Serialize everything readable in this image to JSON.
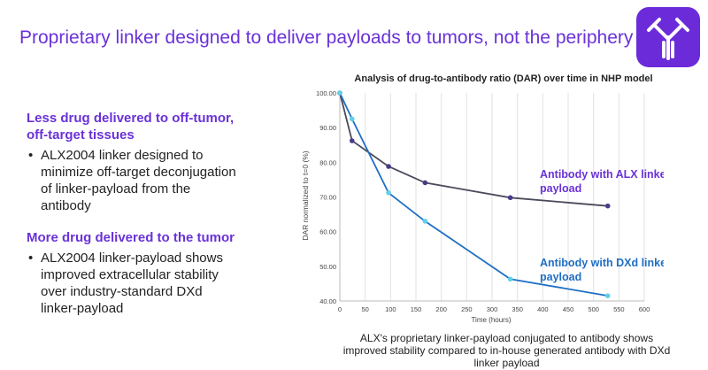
{
  "slide": {
    "title": "Proprietary linker designed to deliver payloads to tumors, not the periphery",
    "logo_icon": "antibody-icon",
    "accent_color": "#6c2bd9"
  },
  "points": [
    {
      "heading_line1": "Less drug delivered to off-tumor,",
      "heading_line2": "off-target tissues",
      "bullet_lines": [
        "ALX2004 linker designed to",
        "minimize off-target deconjugation",
        "of linker-payload from the",
        "antibody"
      ]
    },
    {
      "heading_line1": "More drug delivered to the tumor",
      "bullet_lines": [
        "ALX2004 linker-payload shows",
        "improved extracellular stability",
        "over industry-standard DXd",
        "linker-payload"
      ]
    }
  ],
  "caption_lines": [
    "ALX's proprietary linker-payload conjugated to antibody shows",
    "improved stability compared to in-house generated antibody with DXd",
    "linker payload"
  ],
  "chart_data": {
    "type": "line",
    "title": "Analysis of drug-to-antibody ratio (DAR) over time in NHP model",
    "xlabel": "Time (hours)",
    "ylabel": "DAR normalized to t=0 (%)",
    "xlim": [
      0,
      600
    ],
    "ylim": [
      40,
      100
    ],
    "x_ticks": [
      0,
      50,
      100,
      150,
      200,
      250,
      300,
      350,
      400,
      450,
      500,
      550,
      600
    ],
    "y_ticks": [
      40,
      50,
      60,
      70,
      80,
      90,
      100
    ],
    "y_tick_labels": [
      "40.00",
      "50.00",
      "60.00",
      "70.00",
      "80.00",
      "90.00",
      "100.00"
    ],
    "grid": "vertical",
    "series": [
      {
        "label_line1": "Antibody with ALX linker",
        "label_line2": "payload",
        "color": "#4a4a5a",
        "marker_color": "#4b3a8c",
        "label_color": "#6a32d8",
        "x": [
          0,
          24,
          96,
          168,
          336,
          528
        ],
        "y": [
          100,
          86.2,
          78.8,
          74.1,
          69.8,
          67.4
        ]
      },
      {
        "label_line1": "Antibody with DXd linker",
        "label_line2": "payload",
        "color": "#1f6fc4",
        "marker_color": "#5fd0e8",
        "label_color": "#1f6fc4",
        "x": [
          0,
          24,
          96,
          168,
          336,
          528
        ],
        "y": [
          100,
          92.5,
          71.2,
          63.0,
          46.3,
          41.5
        ]
      }
    ]
  }
}
